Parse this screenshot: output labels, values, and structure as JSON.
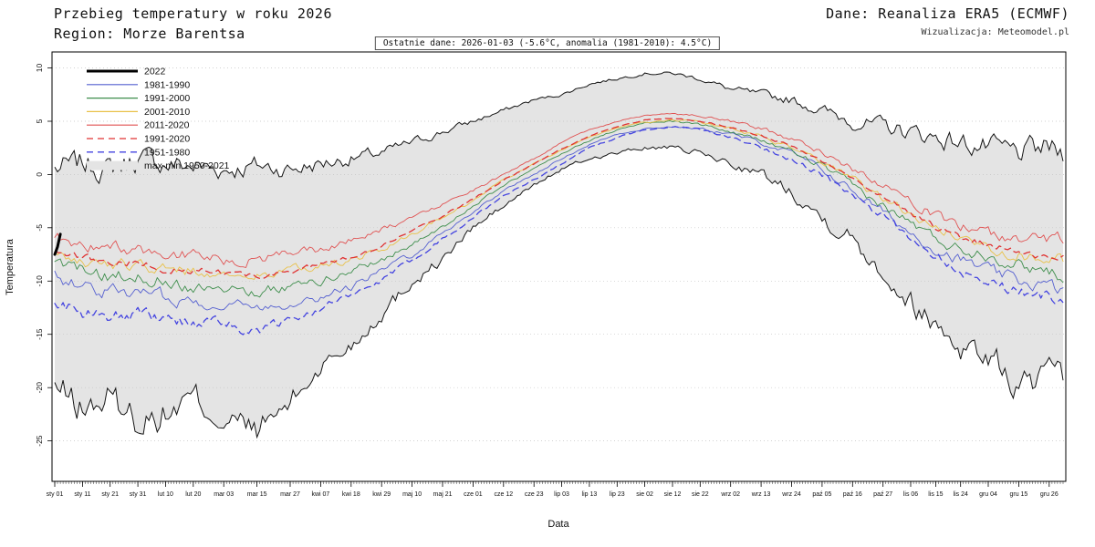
{
  "header": {
    "title": "Przebieg temperatury w roku 2026",
    "region": "Region: Morze Barentsa",
    "source": "Dane: Reanaliza ERA5 (ECMWF)",
    "visualization": "Wizualizacja: Meteomodel.pl"
  },
  "chart_data": {
    "type": "line",
    "title": "Przebieg temperatury w roku 2026",
    "region": "Morze Barentsa",
    "subtitle": "Ostatnie dane: 2026-01-03 (-5.6°C, anomalia (1981-2010): 4.5°C)",
    "xlabel": "Data",
    "ylabel": "Temperatura",
    "ylim": [
      -28.8,
      11.5
    ],
    "yticks": [
      10,
      5,
      0,
      -5,
      -10,
      -15,
      -20,
      -25
    ],
    "xlim": [
      1,
      365
    ],
    "grid": "horizontal-dotted",
    "legend_position": "top-left",
    "xticks": [
      {
        "day": 1,
        "label": "sty 01"
      },
      {
        "day": 11,
        "label": "sty 11"
      },
      {
        "day": 21,
        "label": "sty 21"
      },
      {
        "day": 31,
        "label": "sty 31"
      },
      {
        "day": 41,
        "label": "lut 10"
      },
      {
        "day": 51,
        "label": "lut 20"
      },
      {
        "day": 62,
        "label": "mar 03"
      },
      {
        "day": 74,
        "label": "mar 15"
      },
      {
        "day": 86,
        "label": "mar 27"
      },
      {
        "day": 97,
        "label": "kwi 07"
      },
      {
        "day": 108,
        "label": "kwi 18"
      },
      {
        "day": 119,
        "label": "kwi 29"
      },
      {
        "day": 130,
        "label": "maj 10"
      },
      {
        "day": 141,
        "label": "maj 21"
      },
      {
        "day": 152,
        "label": "cze 01"
      },
      {
        "day": 163,
        "label": "cze 12"
      },
      {
        "day": 174,
        "label": "cze 23"
      },
      {
        "day": 184,
        "label": "lip 03"
      },
      {
        "day": 194,
        "label": "lip 13"
      },
      {
        "day": 204,
        "label": "lip 23"
      },
      {
        "day": 214,
        "label": "sie 02"
      },
      {
        "day": 224,
        "label": "sie 12"
      },
      {
        "day": 234,
        "label": "sie 22"
      },
      {
        "day": 245,
        "label": "wrz 02"
      },
      {
        "day": 256,
        "label": "wrz 13"
      },
      {
        "day": 267,
        "label": "wrz 24"
      },
      {
        "day": 278,
        "label": "paź 05"
      },
      {
        "day": 289,
        "label": "paź 16"
      },
      {
        "day": 300,
        "label": "paź 27"
      },
      {
        "day": 310,
        "label": "lis 06"
      },
      {
        "day": 319,
        "label": "lis 15"
      },
      {
        "day": 328,
        "label": "lis 24"
      },
      {
        "day": 338,
        "label": "gru 04"
      },
      {
        "day": 349,
        "label": "gru 15"
      },
      {
        "day": 360,
        "label": "gru 26"
      }
    ],
    "control_days": [
      1,
      11,
      21,
      31,
      41,
      51,
      62,
      74,
      86,
      97,
      108,
      119,
      130,
      141,
      152,
      163,
      174,
      184,
      194,
      204,
      214,
      224,
      234,
      245,
      256,
      267,
      278,
      289,
      300,
      310,
      319,
      328,
      338,
      349,
      360,
      365
    ],
    "band": {
      "name": "max-min 1950-2021",
      "fill": "#e4e4e4",
      "edge": "#141414",
      "jitter_max": 1.0,
      "seed_max": 7,
      "jitter_min": 1.35,
      "seed_min": 13,
      "max": [
        0.5,
        1.0,
        0.5,
        1.5,
        1.0,
        0.8,
        0.5,
        0.8,
        0.5,
        1.0,
        1.5,
        2.0,
        3.0,
        4.0,
        5.0,
        6.0,
        7.0,
        7.5,
        8.5,
        9.0,
        9.5,
        9.5,
        9.0,
        8.0,
        7.5,
        7.0,
        6.0,
        5.0,
        4.5,
        4.0,
        3.5,
        3.0,
        2.5,
        2.0,
        2.5,
        2.0
      ],
      "min": [
        -20,
        -22,
        -21,
        -23,
        -22.5,
        -21,
        -23,
        -24,
        -21.5,
        -18,
        -16,
        -13,
        -10,
        -8,
        -5,
        -3,
        -1,
        0.5,
        1.5,
        2.0,
        2.5,
        2.5,
        2.0,
        1.0,
        0.0,
        -1.5,
        -4,
        -6,
        -9,
        -12,
        -14,
        -16,
        -17,
        -20,
        -19,
        -20
      ]
    },
    "series": [
      {
        "name": "2022",
        "color": "#000000",
        "width": 3,
        "dash": "solid",
        "topmost": true,
        "jitter": 0,
        "seed": 1,
        "x": [
          1,
          2,
          3
        ],
        "values": [
          -7.5,
          -6.8,
          -5.6
        ]
      },
      {
        "name": "1981-1990",
        "color": "#5560d0",
        "width": 0.9,
        "dash": "solid",
        "jitter": 0.55,
        "seed": 101,
        "values": [
          -9.5,
          -10.5,
          -11,
          -11,
          -11.5,
          -12,
          -12,
          -12.5,
          -12,
          -11.5,
          -10.5,
          -9,
          -7.5,
          -5.5,
          -3.5,
          -1.5,
          0,
          1.5,
          2.8,
          3.8,
          4.3,
          4.5,
          4.3,
          3.8,
          3.0,
          2.0,
          0.5,
          -1.5,
          -3.5,
          -5.5,
          -7,
          -8,
          -9,
          -10,
          -10.5,
          -11
        ]
      },
      {
        "name": "1991-2000",
        "color": "#3e8e4c",
        "width": 0.9,
        "dash": "solid",
        "jitter": 0.55,
        "seed": 202,
        "values": [
          -8.5,
          -9,
          -9.5,
          -9.5,
          -10,
          -10.5,
          -10.5,
          -11,
          -10.5,
          -10,
          -9,
          -8,
          -6.5,
          -5,
          -3,
          -1,
          0.5,
          2,
          3.2,
          4.2,
          4.8,
          5.0,
          4.7,
          4.0,
          3.2,
          2.2,
          0.8,
          -1,
          -3,
          -4.5,
          -6,
          -7,
          -7.5,
          -8.5,
          -9,
          -9.5
        ]
      },
      {
        "name": "2001-2010",
        "color": "#e9c148",
        "width": 0.9,
        "dash": "solid",
        "jitter": 0.5,
        "seed": 303,
        "values": [
          -7.5,
          -8,
          -8.5,
          -8.5,
          -9,
          -9,
          -9.5,
          -9.5,
          -9,
          -8.5,
          -8,
          -7,
          -5.5,
          -4,
          -2.5,
          -0.5,
          1,
          2.3,
          3.5,
          4.4,
          4.9,
          5.1,
          4.9,
          4.3,
          3.5,
          2.5,
          1.2,
          -0.5,
          -2.2,
          -3.8,
          -5,
          -6,
          -6.8,
          -7.5,
          -8,
          -8
        ]
      },
      {
        "name": "2011-2020",
        "color": "#e05252",
        "width": 0.9,
        "dash": "solid",
        "jitter": 0.5,
        "seed": 404,
        "values": [
          -6,
          -6.5,
          -7,
          -7,
          -7.5,
          -7.5,
          -8,
          -8,
          -7.5,
          -7,
          -6.2,
          -5.2,
          -4,
          -2.8,
          -1.5,
          0,
          1.5,
          3,
          4.2,
          5,
          5.5,
          5.7,
          5.5,
          5.0,
          4.3,
          3.3,
          2.0,
          0.5,
          -1,
          -2.5,
          -3.8,
          -4.8,
          -5.5,
          -6,
          -6.2,
          -6
        ]
      },
      {
        "name": "1991-2020",
        "color": "#e03333",
        "width": 1.3,
        "dash": "dashed",
        "jitter": 0.3,
        "seed": 505,
        "values": [
          -7.3,
          -7.8,
          -8.3,
          -8.3,
          -8.8,
          -9,
          -9.3,
          -9.5,
          -9,
          -8.5,
          -7.7,
          -6.7,
          -5.3,
          -3.9,
          -2.3,
          -0.5,
          1,
          2.4,
          3.6,
          4.5,
          5.1,
          5.3,
          5.0,
          4.4,
          3.7,
          2.7,
          1.3,
          -0.3,
          -2.1,
          -3.6,
          -4.9,
          -5.9,
          -6.6,
          -7.3,
          -7.7,
          -7.8
        ]
      },
      {
        "name": "1951-1980",
        "color": "#4444e0",
        "width": 1.3,
        "dash": "dashed",
        "jitter": 0.5,
        "seed": 606,
        "values": [
          -12,
          -13,
          -13.5,
          -13,
          -13.5,
          -14,
          -14,
          -15,
          -13.5,
          -12.5,
          -11.5,
          -10,
          -8,
          -6,
          -4,
          -2,
          -0.5,
          1,
          2.5,
          3.5,
          4.2,
          4.5,
          4.2,
          3.5,
          2.5,
          1.5,
          0,
          -2,
          -4,
          -6,
          -7.5,
          -9,
          -10,
          -11,
          -11.5,
          -11.5
        ]
      }
    ]
  }
}
